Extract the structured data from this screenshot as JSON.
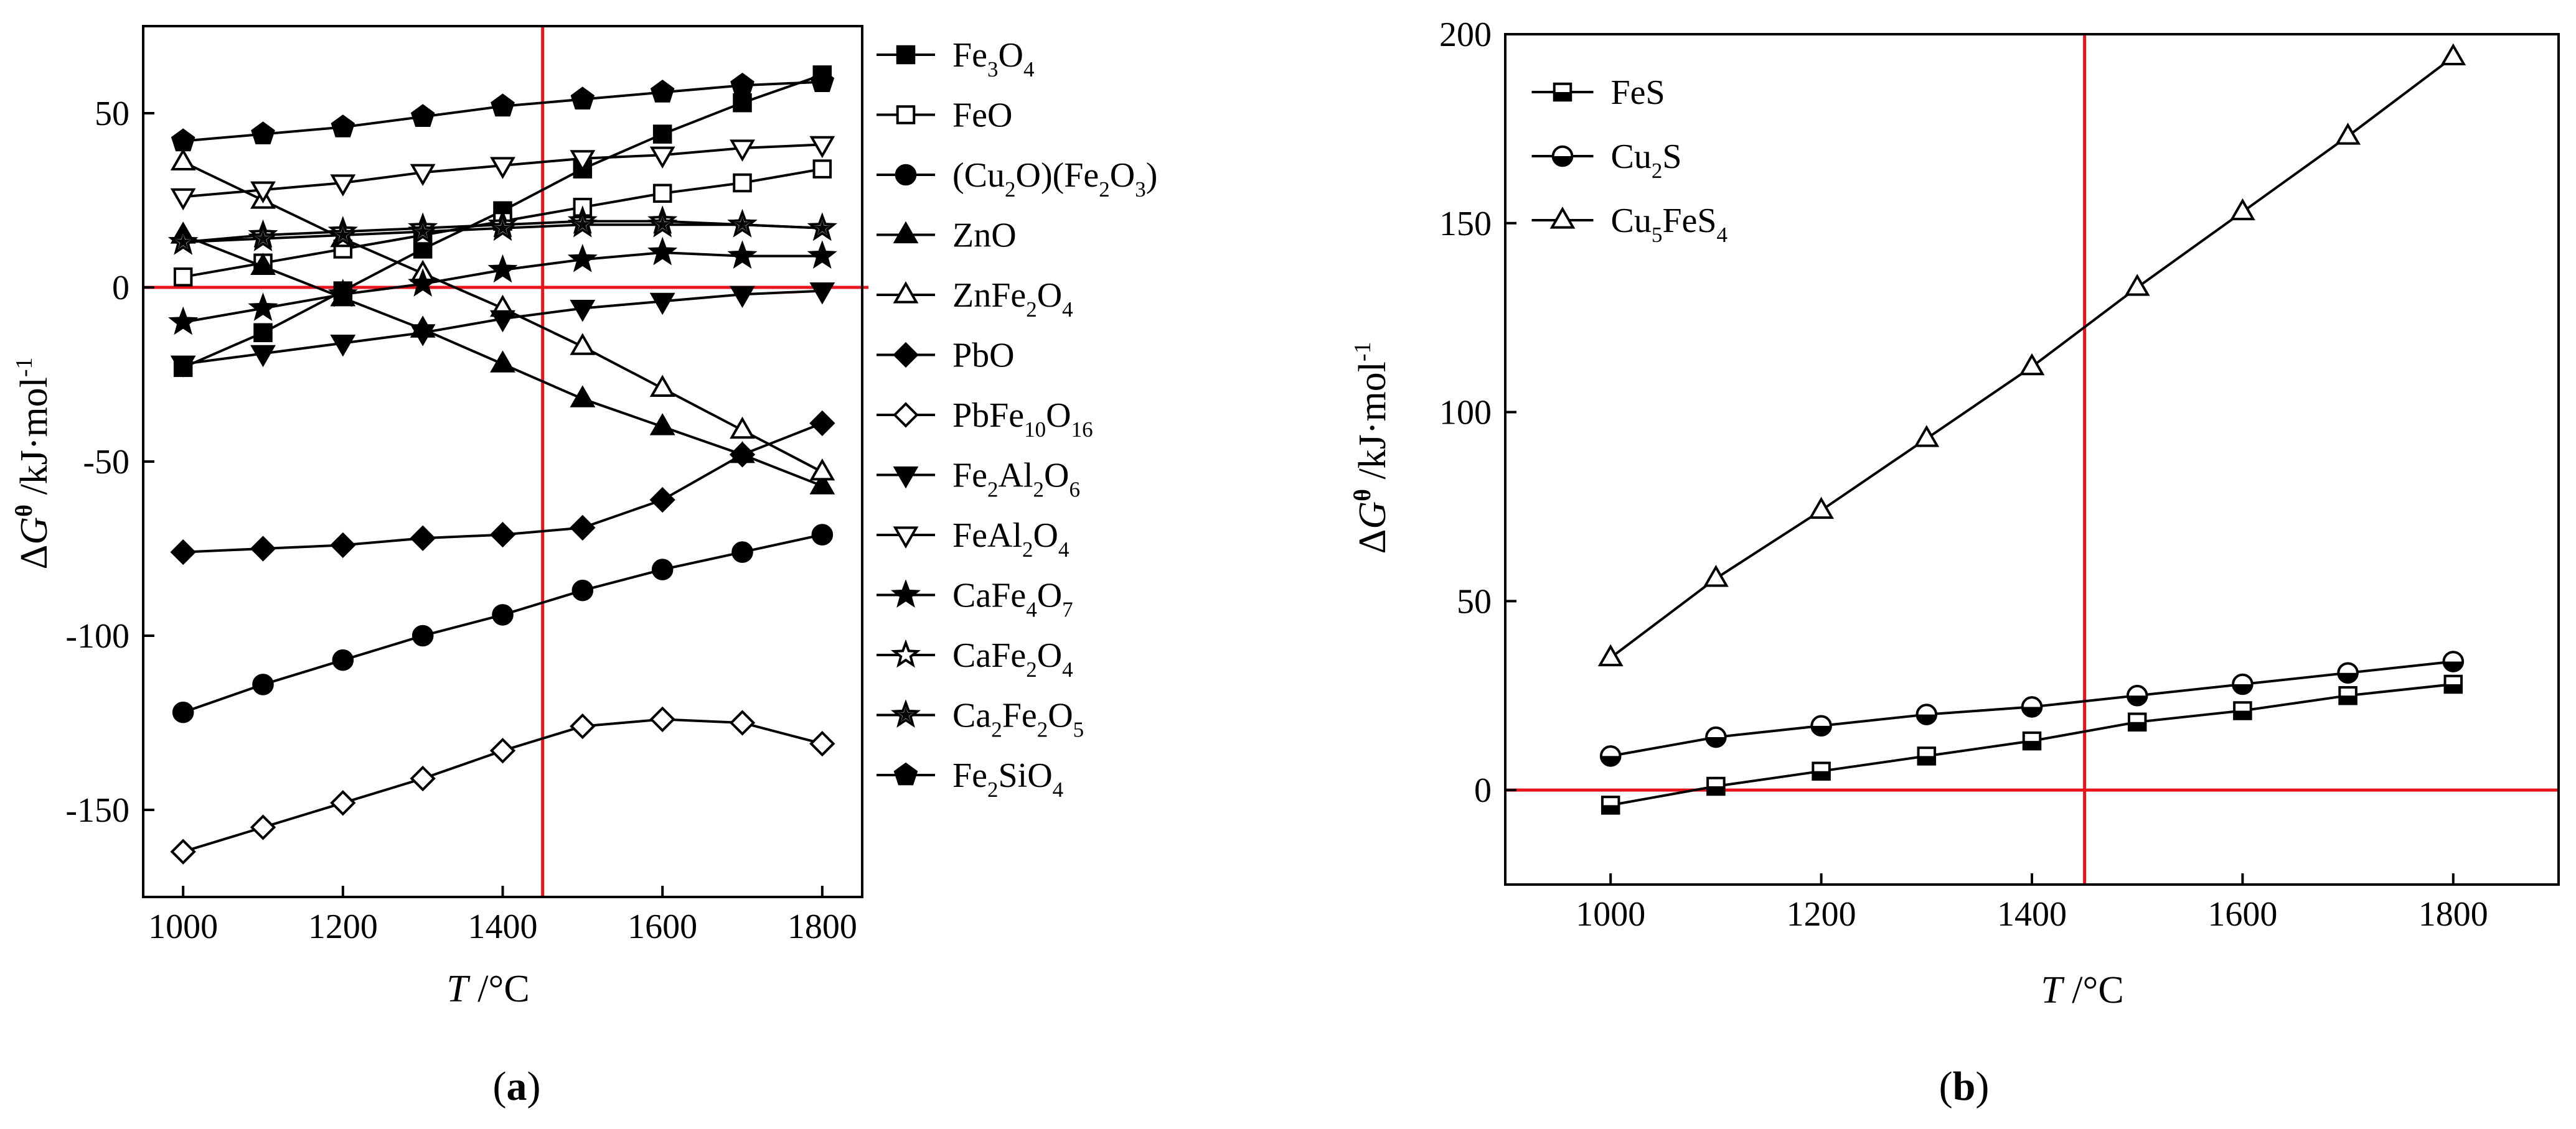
{
  "colors": {
    "axis": "#000000",
    "reference": "#e8141c",
    "series": "#000000",
    "background": "#ffffff"
  },
  "chart_data": [
    {
      "id": "a",
      "type": "line",
      "panel_label": "(a)",
      "xlabel": "T /°C",
      "ylabel": "ΔGθ /kJ·mol-1",
      "xlim": [
        950,
        1850
      ],
      "ylim": [
        -175,
        75
      ],
      "xticks": [
        1000,
        1200,
        1400,
        1600,
        1800
      ],
      "yticks": [
        -150,
        -100,
        -50,
        0,
        50
      ],
      "reference_lines": {
        "x": 1450,
        "y": 0
      },
      "legend_position": "right-outside",
      "x": [
        1000,
        1100,
        1200,
        1300,
        1400,
        1500,
        1600,
        1700,
        1800
      ],
      "series": [
        {
          "name": "Fe3O4",
          "marker": "square-filled",
          "values": [
            -23,
            -13,
            -1,
            11,
            22,
            34,
            44,
            53,
            61
          ]
        },
        {
          "name": "FeO",
          "marker": "square-open",
          "values": [
            3,
            7,
            11,
            15,
            19,
            23,
            27,
            30,
            34
          ]
        },
        {
          "name": "(Cu2O)(Fe2O3)",
          "marker": "circle-filled",
          "values": [
            -122,
            -114,
            -107,
            -100,
            -94,
            -87,
            -81,
            -76,
            -71
          ]
        },
        {
          "name": "ZnO",
          "marker": "triangle-up-filled",
          "values": [
            15,
            6,
            -3,
            -12,
            -22,
            -32,
            -40,
            -48,
            -57
          ]
        },
        {
          "name": "ZnFe2O4",
          "marker": "triangle-up-open",
          "values": [
            36,
            25,
            14,
            4,
            -6,
            -17,
            -29,
            -41,
            -53
          ]
        },
        {
          "name": "PbO",
          "marker": "diamond-filled",
          "values": [
            -76,
            -75,
            -74,
            -72,
            -71,
            -69,
            -61,
            -48,
            -39
          ]
        },
        {
          "name": "PbFe10O16",
          "marker": "diamond-open",
          "values": [
            -162,
            -155,
            -148,
            -141,
            -133,
            -126,
            -124,
            -125,
            -131
          ]
        },
        {
          "name": "Fe2Al2O6",
          "marker": "triangle-down-filled",
          "values": [
            -22,
            -19,
            -16,
            -13,
            -9,
            -6,
            -4,
            -2,
            -1
          ]
        },
        {
          "name": "FeAl2O4",
          "marker": "triangle-down-open",
          "values": [
            26,
            28,
            30,
            33,
            35,
            37,
            38,
            40,
            41
          ]
        },
        {
          "name": "CaFe4O7",
          "marker": "star-filled",
          "values": [
            -10,
            -6,
            -2,
            1,
            5,
            8,
            10,
            9,
            9
          ]
        },
        {
          "name": "CaFe2O4",
          "marker": "star-open",
          "values": [
            13,
            15,
            16,
            17,
            18,
            19,
            19,
            18,
            17
          ]
        },
        {
          "name": "Ca2Fe2O5",
          "marker": "star-half",
          "values": [
            13,
            14,
            15,
            16,
            17,
            18,
            18,
            18,
            17
          ]
        },
        {
          "name": "Fe2SiO4",
          "marker": "pentagon-filled",
          "values": [
            42,
            44,
            46,
            49,
            52,
            54,
            56,
            58,
            59
          ]
        }
      ],
      "legend_labels": [
        [
          [
            "Fe",
            "n"
          ],
          [
            "3",
            "sub"
          ],
          [
            "O",
            "n"
          ],
          [
            "4",
            "sub"
          ]
        ],
        [
          [
            "FeO",
            "n"
          ]
        ],
        [
          [
            "(Cu",
            "n"
          ],
          [
            "2",
            "sub"
          ],
          [
            "O)(Fe",
            "n"
          ],
          [
            "2",
            "sub"
          ],
          [
            "O",
            "n"
          ],
          [
            "3",
            "sub"
          ],
          [
            ")",
            "n"
          ]
        ],
        [
          [
            "ZnO",
            "n"
          ]
        ],
        [
          [
            "ZnFe",
            "n"
          ],
          [
            "2",
            "sub"
          ],
          [
            "O",
            "n"
          ],
          [
            "4",
            "sub"
          ]
        ],
        [
          [
            "PbO",
            "n"
          ]
        ],
        [
          [
            "PbFe",
            "n"
          ],
          [
            "10",
            "sub"
          ],
          [
            "O",
            "n"
          ],
          [
            "16",
            "sub"
          ]
        ],
        [
          [
            "Fe",
            "n"
          ],
          [
            "2",
            "sub"
          ],
          [
            "Al",
            "n"
          ],
          [
            "2",
            "sub"
          ],
          [
            "O",
            "n"
          ],
          [
            "6",
            "sub"
          ]
        ],
        [
          [
            "FeAl",
            "n"
          ],
          [
            "2",
            "sub"
          ],
          [
            "O",
            "n"
          ],
          [
            "4",
            "sub"
          ]
        ],
        [
          [
            "CaFe",
            "n"
          ],
          [
            "4",
            "sub"
          ],
          [
            "O",
            "n"
          ],
          [
            "7",
            "sub"
          ]
        ],
        [
          [
            "CaFe",
            "n"
          ],
          [
            "2",
            "sub"
          ],
          [
            "O",
            "n"
          ],
          [
            "4",
            "sub"
          ]
        ],
        [
          [
            "Ca",
            "n"
          ],
          [
            "2",
            "sub"
          ],
          [
            "Fe",
            "n"
          ],
          [
            "2",
            "sub"
          ],
          [
            "O",
            "n"
          ],
          [
            "5",
            "sub"
          ]
        ],
        [
          [
            "Fe",
            "n"
          ],
          [
            "2",
            "sub"
          ],
          [
            "SiO",
            "n"
          ],
          [
            "4",
            "sub"
          ]
        ]
      ]
    },
    {
      "id": "b",
      "type": "line",
      "panel_label": "(b)",
      "xlabel": "T /°C",
      "ylabel": "ΔGθ /kJ·mol-1",
      "xlim": [
        900,
        1900
      ],
      "ylim": [
        -25,
        200
      ],
      "xticks": [
        1000,
        1200,
        1400,
        1600,
        1800
      ],
      "yticks": [
        0,
        50,
        100,
        150,
        200
      ],
      "reference_lines": {
        "x": 1450,
        "y": 0
      },
      "legend_position": "top-left",
      "x": [
        1000,
        1100,
        1200,
        1300,
        1400,
        1500,
        1600,
        1700,
        1800
      ],
      "series": [
        {
          "name": "FeS",
          "marker": "square-half",
          "values": [
            -4,
            1,
            5,
            9,
            13,
            18,
            21,
            25,
            28
          ]
        },
        {
          "name": "Cu2S",
          "marker": "circle-half",
          "values": [
            9,
            14,
            17,
            20,
            22,
            25,
            28,
            31,
            34
          ]
        },
        {
          "name": "Cu5FeS4",
          "marker": "triangle-half",
          "values": [
            35,
            56,
            74,
            93,
            112,
            133,
            153,
            173,
            194
          ]
        }
      ],
      "legend_labels": [
        [
          [
            "FeS",
            "n"
          ]
        ],
        [
          [
            "Cu",
            "n"
          ],
          [
            "2",
            "sub"
          ],
          [
            "S",
            "n"
          ]
        ],
        [
          [
            "Cu",
            "n"
          ],
          [
            "5",
            "sub"
          ],
          [
            "FeS",
            "n"
          ],
          [
            "4",
            "sub"
          ]
        ]
      ]
    }
  ]
}
